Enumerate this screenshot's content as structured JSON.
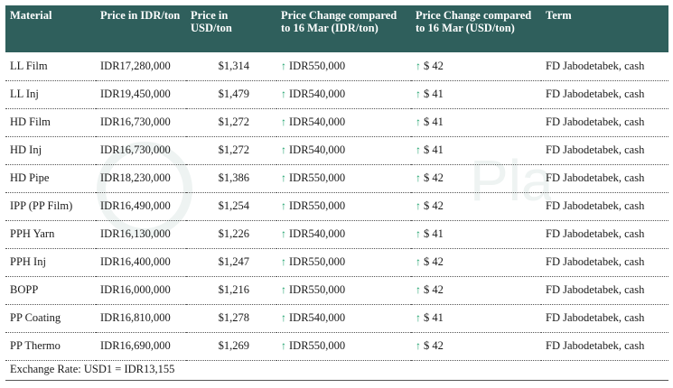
{
  "headers": {
    "material": "Material",
    "price_idr": "Price in IDR/ton",
    "price_usd": "Price in USD/ton",
    "change_idr": "Price Change compared to 16 Mar (IDR/ton)",
    "change_usd": "Price Change compared to 16 Mar (USD/ton)",
    "term": "Term"
  },
  "rows": [
    {
      "material": "LL Film",
      "price_idr": "IDR17,280,000",
      "price_usd": "$1,314",
      "change_idr": "IDR550,000",
      "change_usd": "$ 42",
      "term": "FD Jabodetabek, cash"
    },
    {
      "material": "LL Inj",
      "price_idr": "IDR19,450,000",
      "price_usd": "$1,479",
      "change_idr": "IDR540,000",
      "change_usd": "$ 41",
      "term": "FD Jabodetabek, cash"
    },
    {
      "material": "HD Film",
      "price_idr": "IDR16,730,000",
      "price_usd": "$1,272",
      "change_idr": "IDR540,000",
      "change_usd": "$ 41",
      "term": "FD Jabodetabek, cash"
    },
    {
      "material": "HD Inj",
      "price_idr": "IDR16,730,000",
      "price_usd": "$1,272",
      "change_idr": "IDR540,000",
      "change_usd": "$ 41",
      "term": "FD Jabodetabek, cash"
    },
    {
      "material": "HD Pipe",
      "price_idr": "IDR18,230,000",
      "price_usd": "$1,386",
      "change_idr": "IDR550,000",
      "change_usd": "$ 42",
      "term": "FD Jabodetabek, cash"
    },
    {
      "material": "IPP (PP Film)",
      "price_idr": "IDR16,490,000",
      "price_usd": "$1,254",
      "change_idr": "IDR550,000",
      "change_usd": "$ 42",
      "term": "FD Jabodetabek, cash"
    },
    {
      "material": "PPH Yarn",
      "price_idr": "IDR16,130,000",
      "price_usd": "$1,226",
      "change_idr": "IDR540,000",
      "change_usd": "$ 41",
      "term": "FD Jabodetabek, cash"
    },
    {
      "material": "PPH Inj",
      "price_idr": "IDR16,400,000",
      "price_usd": "$1,247",
      "change_idr": "IDR550,000",
      "change_usd": "$ 42",
      "term": "FD Jabodetabek, cash"
    },
    {
      "material": "BOPP",
      "price_idr": "IDR16,000,000",
      "price_usd": "$1,216",
      "change_idr": "IDR550,000",
      "change_usd": "$ 42",
      "term": "FD Jabodetabek, cash"
    },
    {
      "material": "PP Coating",
      "price_idr": "IDR16,810,000",
      "price_usd": "$1,278",
      "change_idr": "IDR540,000",
      "change_usd": "$ 41",
      "term": "FD Jabodetabek, cash"
    },
    {
      "material": "PP Thermo",
      "price_idr": "IDR16,690,000",
      "price_usd": "$1,269",
      "change_idr": "IDR550,000",
      "change_usd": "$ 42",
      "term": "FD Jabodetabek, cash"
    }
  ],
  "change_direction_icon": "up-arrow-icon",
  "colors": {
    "header_bg": "#2f5f5c",
    "arrow": "#1aa06a"
  },
  "footer": "Exchange Rate: USD1 = IDR13,155",
  "watermark_text": "Plas"
}
